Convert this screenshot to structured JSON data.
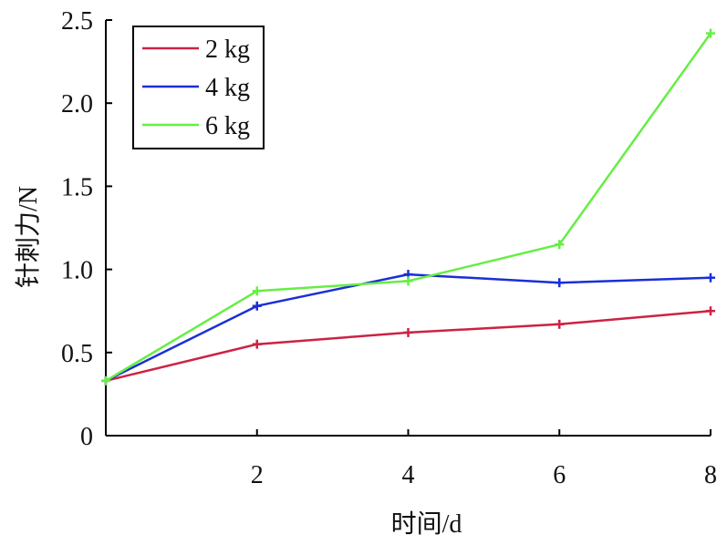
{
  "chart_data": {
    "type": "line",
    "xlabel": "时间/d",
    "ylabel": "针刺力/N",
    "x": [
      0,
      2,
      4,
      6,
      8
    ],
    "xticks": [
      "2",
      "4",
      "6",
      "8"
    ],
    "yticks": [
      "0",
      "0.5",
      "1.0",
      "1.5",
      "2.0",
      "2.5"
    ],
    "xlim": [
      0,
      8
    ],
    "ylim": [
      0,
      2.5
    ],
    "grid": false,
    "legend_position": "top-left",
    "series": [
      {
        "name": "2 kg",
        "color": "#cc2244",
        "values": [
          0.33,
          0.55,
          0.62,
          0.67,
          0.75
        ]
      },
      {
        "name": "4 kg",
        "color": "#1a2fd6",
        "values": [
          0.33,
          0.78,
          0.97,
          0.92,
          0.95
        ]
      },
      {
        "name": "6 kg",
        "color": "#66ee44",
        "values": [
          0.33,
          0.87,
          0.93,
          1.15,
          2.42
        ]
      }
    ]
  }
}
